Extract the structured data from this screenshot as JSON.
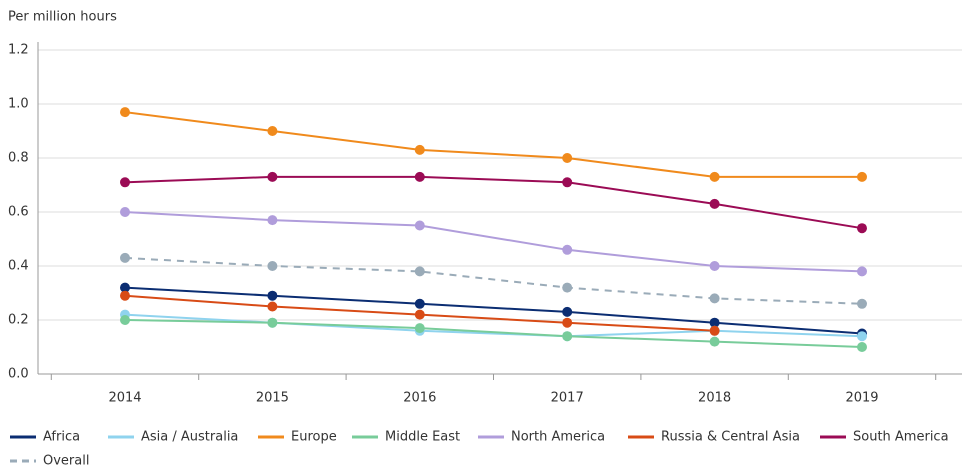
{
  "chart_data": {
    "type": "line",
    "y_label": "Per million hours",
    "categories": [
      "2014",
      "2015",
      "2016",
      "2017",
      "2018",
      "2019"
    ],
    "ylim": [
      0,
      1.2
    ],
    "yticks": [
      {
        "value": 0,
        "label": "0.0"
      },
      0.2,
      0.4,
      0.6,
      0.8,
      {
        "value": 1,
        "label": "1.0"
      },
      1.2
    ],
    "grid": true,
    "series": [
      {
        "name": "Africa",
        "color": "#0b2d72",
        "values": [
          0.32,
          0.29,
          0.26,
          0.23,
          0.19,
          0.15
        ]
      },
      {
        "name": "Asia / Australia",
        "color": "#8fd3ee",
        "values": [
          0.22,
          0.19,
          0.16,
          0.14,
          0.16,
          0.14
        ]
      },
      {
        "name": "Europe",
        "color": "#f08a1c",
        "values": [
          0.97,
          0.9,
          0.83,
          0.8,
          0.73,
          0.73
        ]
      },
      {
        "name": "Middle East",
        "color": "#78cc9a",
        "values": [
          0.2,
          0.19,
          0.17,
          0.14,
          0.12,
          0.1
        ]
      },
      {
        "name": "North America",
        "color": "#b09ddb",
        "values": [
          0.6,
          0.57,
          0.55,
          0.46,
          0.4,
          0.38
        ]
      },
      {
        "name": "Russia & Central Asia",
        "color": "#d84b16",
        "values": [
          0.29,
          0.25,
          0.22,
          0.19,
          0.16,
          null
        ]
      },
      {
        "name": "South America",
        "color": "#9b0b55",
        "values": [
          0.71,
          0.73,
          0.73,
          0.71,
          0.63,
          0.54
        ]
      },
      {
        "name": "Overall",
        "color": "#9aabb8",
        "style": "dashed",
        "values": [
          0.43,
          0.4,
          0.38,
          0.32,
          0.28,
          0.26
        ]
      }
    ]
  }
}
